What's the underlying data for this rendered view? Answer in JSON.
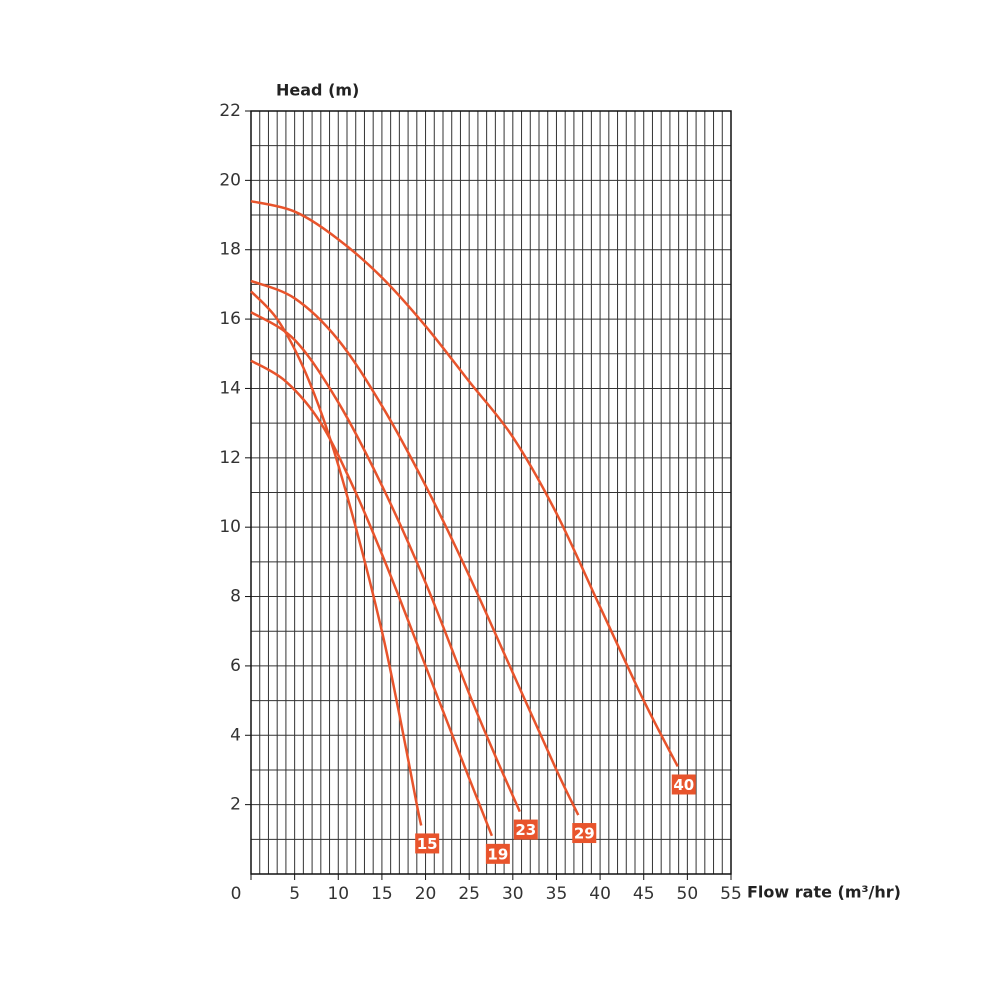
{
  "chart_data": {
    "type": "line",
    "y_label": "Head (m)",
    "x_label": "Flow rate (m³/hr)",
    "xlim": [
      0,
      55
    ],
    "xticks": [
      0,
      5,
      10,
      15,
      20,
      25,
      30,
      35,
      40,
      45,
      50,
      55
    ],
    "ylim": [
      0,
      22
    ],
    "yticks": [
      2,
      4,
      6,
      8,
      10,
      12,
      14,
      16,
      18,
      20,
      22
    ],
    "grid": true,
    "xgrid_step": 1,
    "ygrid_step": 1,
    "series": [
      {
        "name": "15",
        "color": "#e8542c",
        "x": [
          0,
          3,
          6,
          9,
          12,
          15,
          17,
          19,
          19.5
        ],
        "values": [
          16.8,
          16,
          14.6,
          12.6,
          10,
          7,
          4.6,
          2,
          1.4
        ]
      },
      {
        "name": "19",
        "color": "#e8542c",
        "x": [
          0,
          4,
          8,
          12,
          16,
          20,
          24,
          27.6
        ],
        "values": [
          14.8,
          14.2,
          13,
          11,
          8.6,
          6,
          3.4,
          1.1
        ]
      },
      {
        "name": "23",
        "color": "#e8542c",
        "x": [
          0,
          5,
          10,
          15,
          20,
          25,
          28,
          30.8
        ],
        "values": [
          16.2,
          15.4,
          13.6,
          11.2,
          8.4,
          5.2,
          3.4,
          1.8
        ]
      },
      {
        "name": "29",
        "color": "#e8542c",
        "x": [
          0,
          5,
          10,
          15,
          20,
          25,
          30,
          35,
          37.5
        ],
        "values": [
          17.1,
          16.6,
          15.4,
          13.5,
          11.2,
          8.6,
          5.8,
          3,
          1.7
        ]
      },
      {
        "name": "40",
        "color": "#e8542c",
        "x": [
          0,
          5,
          10,
          15,
          20,
          25,
          30,
          35,
          40,
          45,
          48.9
        ],
        "values": [
          19.4,
          19.1,
          18.3,
          17.2,
          15.8,
          14.2,
          12.6,
          10.4,
          7.7,
          5,
          3.1
        ]
      }
    ]
  }
}
